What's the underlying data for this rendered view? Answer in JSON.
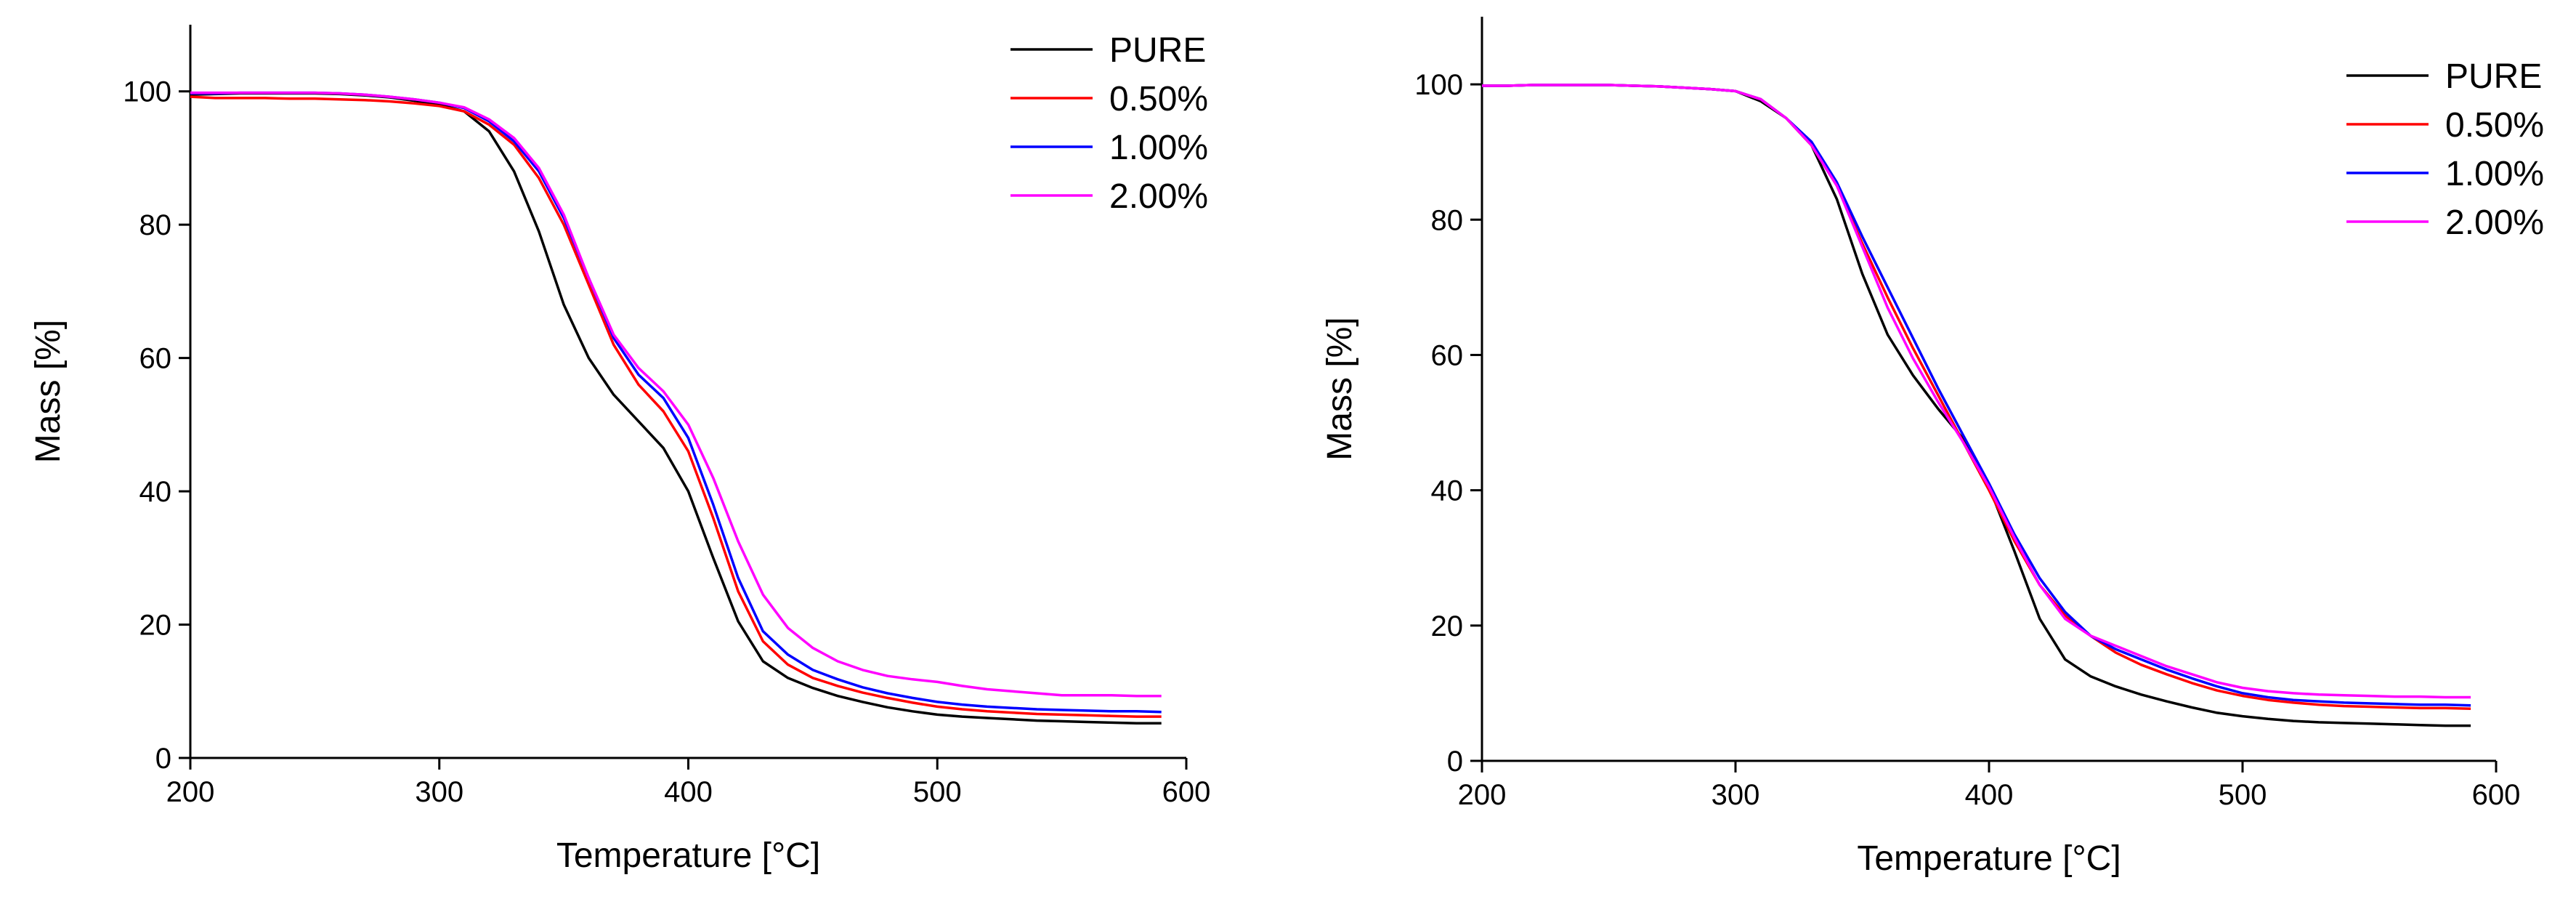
{
  "chart_data": [
    {
      "type": "line",
      "xlabel": "Temperature [°C]",
      "ylabel": "Mass [%]",
      "x": [
        200,
        210,
        220,
        230,
        240,
        250,
        260,
        270,
        280,
        290,
        300,
        310,
        320,
        330,
        340,
        350,
        360,
        370,
        380,
        390,
        400,
        410,
        420,
        430,
        440,
        450,
        460,
        470,
        480,
        490,
        500,
        510,
        520,
        530,
        540,
        550,
        560,
        570,
        580,
        590
      ],
      "xlim": [
        200,
        600
      ],
      "xticks": [
        200,
        300,
        400,
        500,
        600
      ],
      "ylim": [
        0,
        110
      ],
      "yticks": [
        0,
        20,
        40,
        60,
        80,
        100
      ],
      "legend": "upper right",
      "series": [
        {
          "name": "PURE",
          "color": "#000000",
          "values": [
            99.5,
            99.6,
            99.7,
            99.7,
            99.7,
            99.7,
            99.6,
            99.4,
            99.1,
            98.6,
            98,
            97,
            94,
            88,
            79,
            68,
            60,
            54.5,
            50.5,
            46.5,
            40,
            30,
            20.5,
            14.5,
            12,
            10.5,
            9.3,
            8.4,
            7.6,
            7,
            6.5,
            6.2,
            6,
            5.8,
            5.6,
            5.5,
            5.4,
            5.3,
            5.2,
            5.2
          ]
        },
        {
          "name": "0.50%",
          "color": "#ff0000",
          "values": [
            99.2,
            99,
            99,
            99,
            98.9,
            98.9,
            98.8,
            98.7,
            98.5,
            98.2,
            97.8,
            97,
            95,
            92,
            87,
            80,
            71,
            62,
            56,
            52,
            46,
            36,
            25,
            17.5,
            14,
            12,
            10.8,
            9.8,
            9,
            8.3,
            7.7,
            7.3,
            7,
            6.8,
            6.6,
            6.5,
            6.4,
            6.3,
            6.2,
            6.2
          ]
        },
        {
          "name": "1.00%",
          "color": "#0000ff",
          "values": [
            99.7,
            99.7,
            99.8,
            99.8,
            99.8,
            99.8,
            99.7,
            99.5,
            99.2,
            98.8,
            98.3,
            97.5,
            95.5,
            92.5,
            88,
            81,
            72,
            63,
            57.5,
            54,
            48,
            38,
            27,
            19,
            15.5,
            13.2,
            11.8,
            10.6,
            9.7,
            9,
            8.4,
            8,
            7.7,
            7.5,
            7.3,
            7.2,
            7.1,
            7,
            7,
            6.9
          ]
        },
        {
          "name": "2.00%",
          "color": "#ff00ff",
          "values": [
            99.8,
            99.8,
            99.8,
            99.8,
            99.8,
            99.8,
            99.7,
            99.5,
            99.2,
            98.8,
            98.3,
            97.6,
            95.8,
            93,
            88.5,
            81.5,
            72,
            63.5,
            58.5,
            55,
            50,
            42,
            32.5,
            24.5,
            19.5,
            16.5,
            14.5,
            13.2,
            12.3,
            11.8,
            11.4,
            10.8,
            10.3,
            10,
            9.7,
            9.4,
            9.4,
            9.4,
            9.3,
            9.3
          ]
        }
      ]
    },
    {
      "type": "line",
      "xlabel": "Temperature [°C]",
      "ylabel": "Mass [%]",
      "x": [
        200,
        210,
        220,
        230,
        240,
        250,
        260,
        270,
        280,
        290,
        300,
        310,
        320,
        330,
        340,
        350,
        360,
        370,
        380,
        390,
        400,
        410,
        420,
        430,
        440,
        450,
        460,
        470,
        480,
        490,
        500,
        510,
        520,
        530,
        540,
        550,
        560,
        570,
        580,
        590
      ],
      "xlim": [
        200,
        600
      ],
      "xticks": [
        200,
        300,
        400,
        500,
        600
      ],
      "ylim": [
        0,
        110
      ],
      "yticks": [
        0,
        20,
        40,
        60,
        80,
        100
      ],
      "legend": "upper right",
      "series": [
        {
          "name": "PURE",
          "color": "#000000",
          "values": [
            99.8,
            99.8,
            99.9,
            99.9,
            99.9,
            99.9,
            99.8,
            99.7,
            99.5,
            99.3,
            99,
            97.5,
            95,
            91,
            83,
            72,
            63,
            57,
            52,
            47.5,
            40.5,
            31,
            21,
            15,
            12.5,
            11,
            9.8,
            8.8,
            7.9,
            7.1,
            6.6,
            6.2,
            5.9,
            5.7,
            5.6,
            5.5,
            5.4,
            5.3,
            5.2,
            5.2
          ]
        },
        {
          "name": "0.50%",
          "color": "#ff0000",
          "values": [
            99.8,
            99.8,
            99.9,
            99.9,
            99.9,
            99.9,
            99.8,
            99.7,
            99.5,
            99.3,
            99,
            97.8,
            95,
            91,
            85,
            76.5,
            68.5,
            61,
            54,
            47,
            40,
            32.5,
            26,
            21.5,
            18.5,
            16,
            14.2,
            12.8,
            11.5,
            10.4,
            9.6,
            9,
            8.6,
            8.3,
            8.1,
            8,
            7.9,
            7.8,
            7.8,
            7.7
          ]
        },
        {
          "name": "1.00%",
          "color": "#0000ff",
          "values": [
            99.8,
            99.8,
            99.9,
            99.9,
            99.9,
            99.9,
            99.8,
            99.7,
            99.5,
            99.3,
            99,
            97.8,
            95,
            91.5,
            85.5,
            77.5,
            70,
            62.5,
            55,
            48,
            41,
            33.5,
            27,
            22,
            18.5,
            16.5,
            15,
            13.5,
            12.2,
            11,
            10,
            9.4,
            9,
            8.8,
            8.6,
            8.5,
            8.4,
            8.3,
            8.3,
            8.2
          ]
        },
        {
          "name": "2.00%",
          "color": "#ff00ff",
          "values": [
            99.8,
            99.8,
            99.9,
            99.9,
            99.9,
            99.9,
            99.8,
            99.7,
            99.5,
            99.3,
            99,
            97.8,
            95,
            91,
            85,
            76,
            67,
            59.5,
            53,
            47,
            40.5,
            33,
            26,
            21,
            18.5,
            17,
            15.5,
            14,
            12.8,
            11.6,
            10.8,
            10.3,
            10,
            9.8,
            9.7,
            9.6,
            9.5,
            9.5,
            9.4,
            9.4
          ]
        }
      ]
    }
  ]
}
